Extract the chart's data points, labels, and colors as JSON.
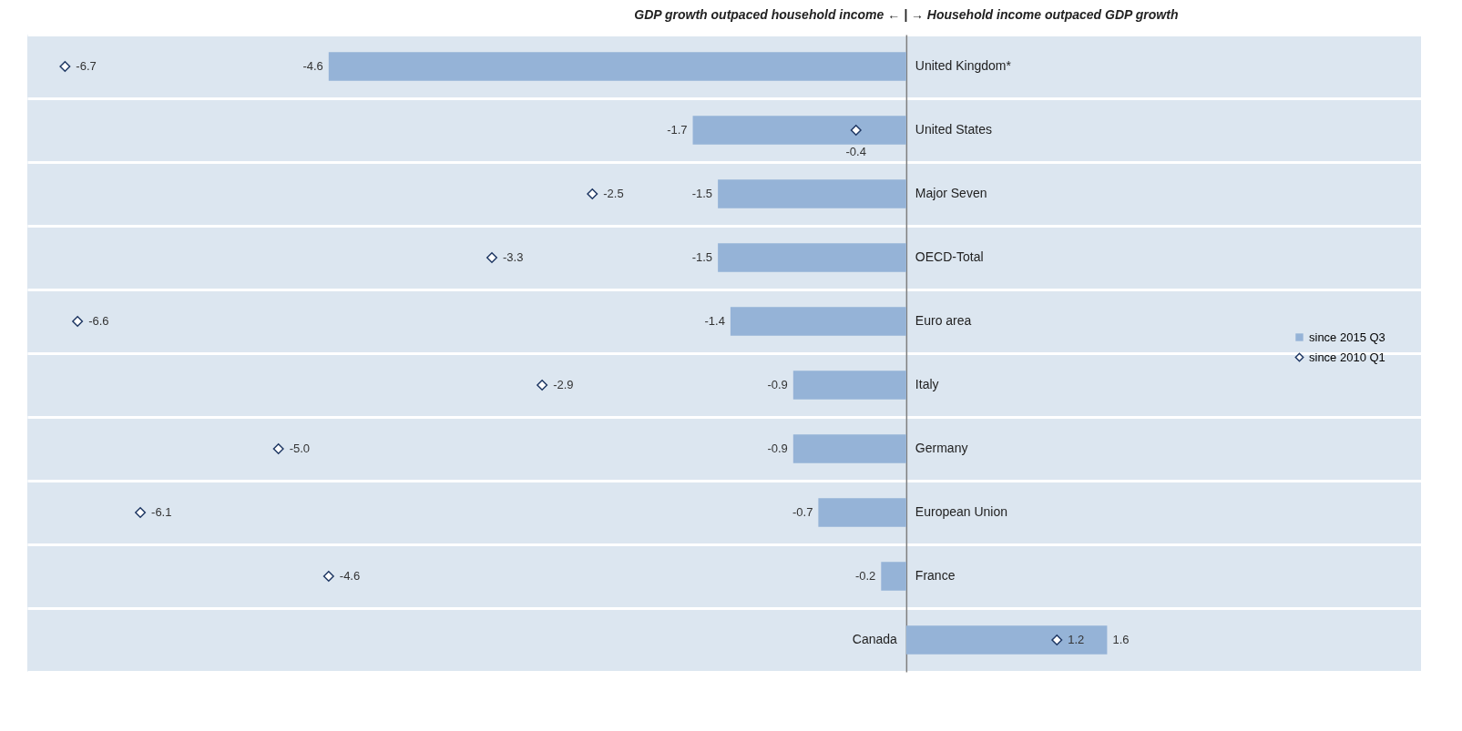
{
  "chart_data": {
    "type": "bar",
    "orientation": "horizontal",
    "title": "GDP growth outpaced household income ← | → Household income outpaced GDP growth",
    "categories": [
      "United Kingdom*",
      "United States",
      "Major Seven",
      "OECD-Total",
      "Euro area",
      "Italy",
      "Germany",
      "European Union",
      "France",
      "Canada"
    ],
    "series": [
      {
        "name": "since 2015 Q3",
        "color": "#95b3d7",
        "values": [
          -4.6,
          -1.7,
          -1.5,
          -1.5,
          -1.4,
          -0.9,
          -0.9,
          -0.7,
          -0.2,
          1.6
        ]
      },
      {
        "name": "since 2010 Q1",
        "type": "scatter",
        "marker": "diamond",
        "color": "#1f3864",
        "values": [
          -6.7,
          -0.4,
          -2.5,
          -3.3,
          -6.6,
          -2.9,
          -5.0,
          -6.1,
          -4.6,
          1.2
        ],
        "value_labels": [
          "-6.7",
          "-0.4",
          "-2.5",
          "-3.3",
          "-6.6",
          "-2.9",
          "-5.0",
          "-6.1",
          "-4.6",
          "1.2"
        ]
      }
    ],
    "data_labels": true,
    "xlim": [
      -7,
      4.1
    ],
    "tick_labels": "y",
    "grid": "y",
    "legend": "right"
  }
}
